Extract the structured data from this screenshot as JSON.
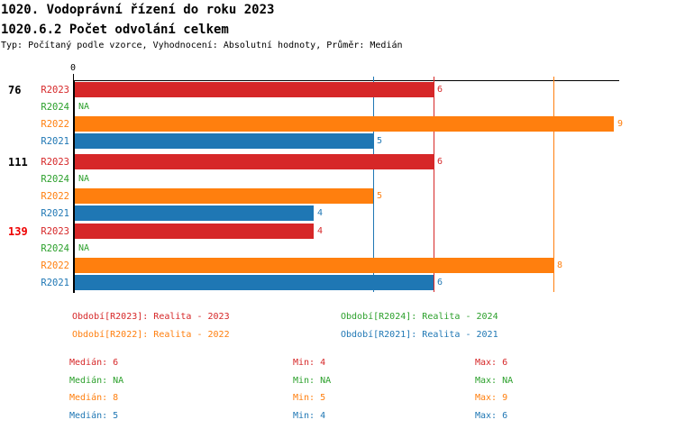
{
  "page": {
    "title": "1020. Vodoprávní řízení do roku 2023",
    "subtitle": "1020.6.2 Počet odvolání celkem",
    "meta": "Typ: Počítaný podle vzorce, Vyhodnocení: Absolutní hodnoty, Průměr: Medián"
  },
  "chart_data": {
    "type": "bar",
    "orientation": "horizontal",
    "title": "1020.6.2 Počet odvolání celkem",
    "x_axis": {
      "origin_label": "0",
      "xlim": [
        0,
        9.1
      ],
      "grid": false
    },
    "series_colors": {
      "R2023": "#d62728",
      "R2024": "#2ca02c",
      "R2022": "#ff7f0e",
      "R2021": "#1f77b4"
    },
    "highlight_color": "#ee0000",
    "groups": [
      {
        "label": "76",
        "label_color": "#000000",
        "bars": [
          {
            "series": "R2023",
            "value": 6,
            "display": "6"
          },
          {
            "series": "R2024",
            "value": null,
            "display": "NA"
          },
          {
            "series": "R2022",
            "value": 9,
            "display": "9"
          },
          {
            "series": "R2021",
            "value": 5,
            "display": "5"
          }
        ]
      },
      {
        "label": "111",
        "label_color": "#000000",
        "bars": [
          {
            "series": "R2023",
            "value": 6,
            "display": "6"
          },
          {
            "series": "R2024",
            "value": null,
            "display": "NA"
          },
          {
            "series": "R2022",
            "value": 5,
            "display": "5"
          },
          {
            "series": "R2021",
            "value": 4,
            "display": "4"
          }
        ]
      },
      {
        "label": "139",
        "label_color": "#ee0000",
        "bars": [
          {
            "series": "R2023",
            "value": 4,
            "display": "4"
          },
          {
            "series": "R2024",
            "value": null,
            "display": "NA"
          },
          {
            "series": "R2022",
            "value": 8,
            "display": "8"
          },
          {
            "series": "R2021",
            "value": 6,
            "display": "6"
          }
        ]
      }
    ],
    "median_lines": [
      {
        "series": "R2021",
        "value": 5
      },
      {
        "series": "R2023",
        "value": 6
      },
      {
        "series": "R2022",
        "value": 8
      }
    ],
    "legend": [
      {
        "series": "R2023",
        "text": "Období[R2023]: Realita - 2023",
        "row": 0,
        "col": 0
      },
      {
        "series": "R2024",
        "text": "Období[R2024]: Realita - 2024",
        "row": 0,
        "col": 1
      },
      {
        "series": "R2022",
        "text": "Období[R2022]: Realita - 2022",
        "row": 1,
        "col": 0
      },
      {
        "series": "R2021",
        "text": "Období[R2021]: Realita - 2021",
        "row": 1,
        "col": 1
      }
    ],
    "stats": [
      {
        "series": "R2023",
        "median": "Medián: 6",
        "min": "Min: 4",
        "max": "Max: 6"
      },
      {
        "series": "R2024",
        "median": "Medián: NA",
        "min": "Min: NA",
        "max": "Max: NA"
      },
      {
        "series": "R2022",
        "median": "Medián: 8",
        "min": "Min: 5",
        "max": "Max: 9"
      },
      {
        "series": "R2021",
        "median": "Medián: 5",
        "min": "Min: 4",
        "max": "Max: 6"
      }
    ]
  }
}
